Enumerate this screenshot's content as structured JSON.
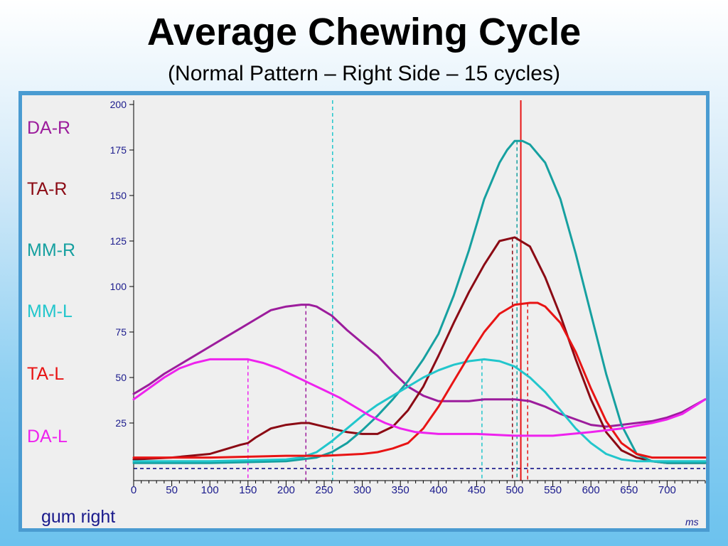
{
  "title": "Average Chewing Cycle",
  "subtitle": "(Normal Pattern – Right Side – 15 cycles)",
  "chart_data": {
    "type": "line",
    "xlabel": "ms",
    "ylabel": "",
    "xlim": [
      0,
      750
    ],
    "ylim": [
      0,
      200
    ],
    "x_ticks": [
      0,
      50,
      100,
      150,
      200,
      250,
      300,
      350,
      400,
      450,
      500,
      550,
      600,
      650,
      700
    ],
    "y_ticks": [
      25,
      50,
      75,
      100,
      125,
      150,
      175,
      200
    ],
    "legend": [
      "DA-R",
      "TA-R",
      "MM-R",
      "MM-L",
      "TA-L",
      "DA-L"
    ],
    "annotation": "gum right",
    "series": [
      {
        "name": "DA-R",
        "color": "#9c1c9c",
        "x": [
          0,
          20,
          40,
          60,
          80,
          100,
          120,
          140,
          160,
          180,
          200,
          220,
          230,
          240,
          260,
          280,
          300,
          320,
          340,
          360,
          380,
          400,
          420,
          440,
          460,
          480,
          500,
          520,
          540,
          560,
          580,
          600,
          620,
          640,
          660,
          680,
          700,
          720,
          750
        ],
        "y": [
          41,
          46,
          52,
          57,
          62,
          67,
          72,
          77,
          82,
          87,
          89,
          90,
          90,
          89,
          84,
          76,
          69,
          62,
          53,
          45,
          40,
          37,
          37,
          37,
          38,
          38,
          38,
          37,
          34,
          30,
          27,
          24,
          23,
          24,
          25,
          26,
          28,
          31,
          38
        ]
      },
      {
        "name": "TA-R",
        "color": "#8b0a14",
        "x": [
          0,
          50,
          100,
          140,
          150,
          160,
          180,
          200,
          220,
          230,
          240,
          260,
          280,
          300,
          320,
          340,
          360,
          380,
          400,
          420,
          440,
          460,
          480,
          500,
          520,
          540,
          560,
          580,
          600,
          620,
          640,
          660,
          680,
          700,
          750
        ],
        "y": [
          5,
          6,
          8,
          13,
          14,
          17,
          22,
          24,
          25,
          25,
          24,
          22,
          20,
          19,
          19,
          23,
          32,
          45,
          62,
          80,
          97,
          112,
          125,
          127,
          122,
          105,
          84,
          60,
          38,
          20,
          10,
          6,
          4,
          3,
          3
        ]
      },
      {
        "name": "MM-R",
        "color": "#16a0a0",
        "x": [
          0,
          100,
          200,
          240,
          260,
          280,
          300,
          320,
          340,
          360,
          380,
          400,
          420,
          440,
          460,
          480,
          490,
          500,
          510,
          520,
          540,
          560,
          580,
          600,
          620,
          640,
          660,
          680,
          700,
          750
        ],
        "y": [
          3,
          3,
          4,
          6,
          9,
          14,
          21,
          29,
          38,
          48,
          60,
          74,
          95,
          120,
          148,
          168,
          175,
          180,
          180,
          178,
          168,
          148,
          118,
          85,
          52,
          24,
          8,
          4,
          3,
          3
        ]
      },
      {
        "name": "MM-L",
        "color": "#22c6cc",
        "x": [
          0,
          100,
          200,
          220,
          240,
          260,
          280,
          300,
          320,
          340,
          360,
          380,
          400,
          420,
          440,
          460,
          480,
          500,
          520,
          540,
          560,
          580,
          600,
          620,
          640,
          660,
          680,
          700,
          750
        ],
        "y": [
          4,
          4,
          5,
          6,
          9,
          15,
          22,
          29,
          35,
          40,
          45,
          50,
          54,
          57,
          59,
          60,
          59,
          56,
          50,
          42,
          32,
          22,
          14,
          8,
          5,
          4,
          4,
          4,
          4
        ]
      },
      {
        "name": "TA-L",
        "color": "#e81414",
        "x": [
          0,
          100,
          200,
          250,
          300,
          320,
          340,
          360,
          380,
          400,
          420,
          440,
          460,
          480,
          500,
          520,
          530,
          540,
          560,
          580,
          600,
          620,
          640,
          660,
          680,
          700,
          750
        ],
        "y": [
          6,
          6,
          7,
          7,
          8,
          9,
          11,
          14,
          22,
          34,
          48,
          62,
          75,
          85,
          90,
          91,
          91,
          89,
          80,
          64,
          44,
          26,
          14,
          8,
          6,
          6,
          6
        ]
      },
      {
        "name": "DA-L",
        "color": "#ee22ee",
        "x": [
          0,
          20,
          40,
          60,
          80,
          100,
          120,
          150,
          170,
          190,
          210,
          230,
          250,
          270,
          290,
          310,
          330,
          350,
          370,
          400,
          450,
          500,
          550,
          600,
          640,
          680,
          700,
          720,
          750
        ],
        "y": [
          38,
          44,
          50,
          55,
          58,
          60,
          60,
          60,
          58,
          55,
          51,
          47,
          43,
          39,
          34,
          29,
          25,
          22,
          20,
          19,
          19,
          18,
          18,
          20,
          22,
          25,
          27,
          30,
          38
        ]
      }
    ],
    "markers": [
      {
        "x": 150,
        "color": "#ee22ee",
        "style": "dashed"
      },
      {
        "x": 226,
        "color": "#9c1c9c",
        "style": "dashed"
      },
      {
        "x": 261,
        "color": "#22c6cc",
        "style": "dashed",
        "full": true
      },
      {
        "x": 457,
        "color": "#22c6cc",
        "style": "dashed"
      },
      {
        "x": 497,
        "color": "#8b0a14",
        "style": "dashed"
      },
      {
        "x": 503,
        "color": "#16a0a0",
        "style": "dashed"
      },
      {
        "x": 508,
        "color": "#e81414",
        "style": "solid",
        "full": true
      },
      {
        "x": 517,
        "color": "#e81414",
        "style": "dashed"
      }
    ],
    "baseline": {
      "y": 0,
      "color": "#000080",
      "style": "dashed"
    }
  }
}
